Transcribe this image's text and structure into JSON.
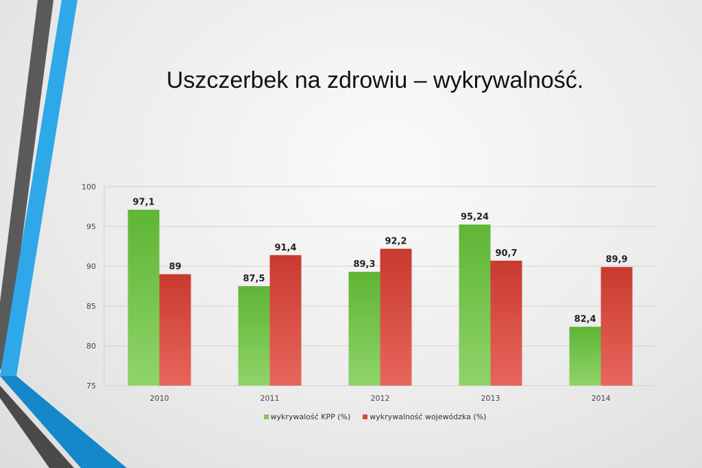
{
  "title": "Uszczerbek na zdrowiu – wykrywalność.",
  "chart_data": {
    "type": "bar",
    "title": "Uszczerbek na zdrowiu – wykrywalność.",
    "categories": [
      "2010",
      "2011",
      "2012",
      "2013",
      "2014"
    ],
    "series": [
      {
        "name": "wykrywalość KPP (%)",
        "values": [
          97.1,
          87.5,
          89.3,
          95.24,
          82.4
        ],
        "labels": [
          "97,1",
          "87,5",
          "89,3",
          "95,24",
          "82,4"
        ],
        "color": "#7ec95a"
      },
      {
        "name": "wykrywalność wojewódzka (%)",
        "values": [
          89,
          91.4,
          92.2,
          90.7,
          89.9
        ],
        "labels": [
          "89",
          "91,4",
          "92,2",
          "90,7",
          "89,9"
        ],
        "color": "#d9453b"
      }
    ],
    "ylim": [
      75,
      100
    ],
    "yticks": [
      75,
      80,
      85,
      90,
      95,
      100
    ],
    "grid": true,
    "legend": "bottom",
    "xlabel": "",
    "ylabel": ""
  }
}
